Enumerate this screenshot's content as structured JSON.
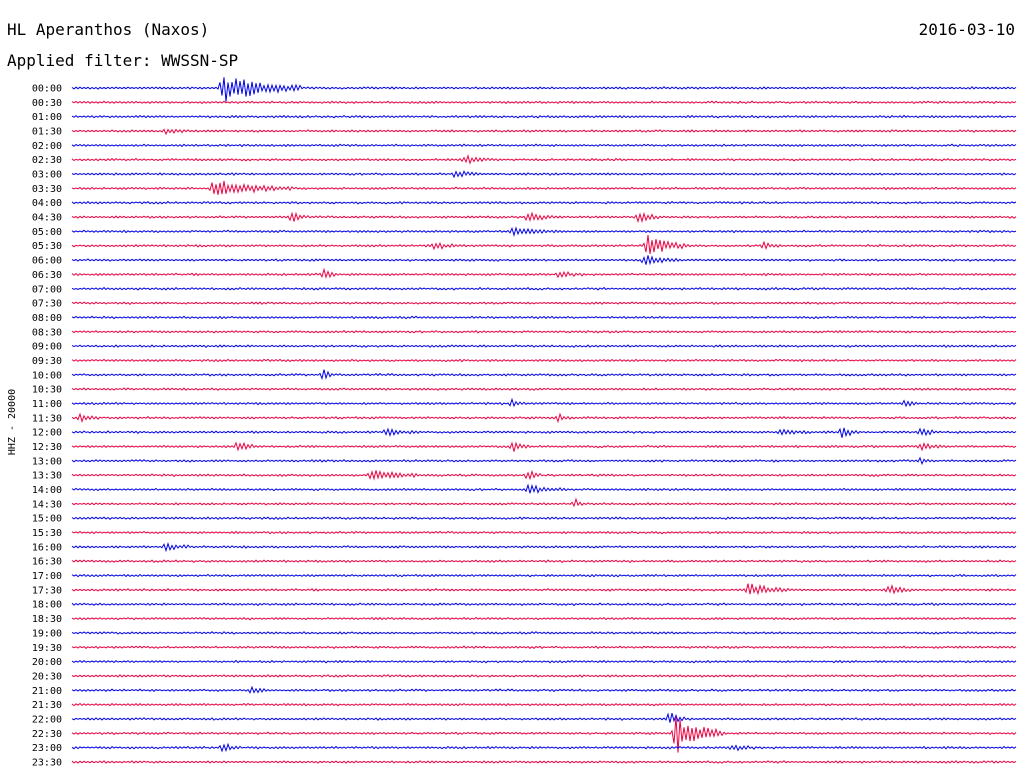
{
  "header": {
    "station": "HL Aperanthos (Naxos)",
    "date": "2016-03-10",
    "filter": "Applied filter: WWSSN-SP"
  },
  "chart_data": {
    "type": "line",
    "ylabel": "HHZ - 20000",
    "row_labels": [
      "00:00",
      "00:30",
      "01:00",
      "01:30",
      "02:00",
      "02:30",
      "03:00",
      "03:30",
      "04:00",
      "04:30",
      "05:00",
      "05:30",
      "06:00",
      "06:30",
      "07:00",
      "07:30",
      "08:00",
      "08:30",
      "09:00",
      "09:30",
      "10:00",
      "10:30",
      "11:00",
      "11:30",
      "12:00",
      "12:30",
      "13:00",
      "13:30",
      "14:00",
      "14:30",
      "15:00",
      "15:30",
      "16:00",
      "16:30",
      "17:00",
      "17:30",
      "18:00",
      "18:30",
      "19:00",
      "19:30",
      "20:00",
      "20:30",
      "21:00",
      "21:30",
      "22:00",
      "22:30",
      "23:00",
      "23:30"
    ],
    "colors": [
      "#0000ee",
      "#ee0040"
    ],
    "trace_minutes": 30,
    "events": [
      {
        "row": 0,
        "minute": 4.8,
        "amp": 15,
        "dur": 2.5
      },
      {
        "row": 3,
        "minute": 3.0,
        "amp": 3,
        "dur": 0.8
      },
      {
        "row": 5,
        "minute": 12.5,
        "amp": 4,
        "dur": 0.8
      },
      {
        "row": 6,
        "minute": 12.2,
        "amp": 4,
        "dur": 0.8
      },
      {
        "row": 7,
        "minute": 4.5,
        "amp": 9,
        "dur": 2.5
      },
      {
        "row": 9,
        "minute": 7.0,
        "amp": 5,
        "dur": 0.5
      },
      {
        "row": 9,
        "minute": 14.5,
        "amp": 4,
        "dur": 1.0
      },
      {
        "row": 9,
        "minute": 18.0,
        "amp": 5,
        "dur": 0.8
      },
      {
        "row": 10,
        "minute": 14.0,
        "amp": 4,
        "dur": 1.5
      },
      {
        "row": 11,
        "minute": 11.5,
        "amp": 3,
        "dur": 1.0
      },
      {
        "row": 11,
        "minute": 18.3,
        "amp": 11,
        "dur": 1.3
      },
      {
        "row": 11,
        "minute": 22.0,
        "amp": 3,
        "dur": 0.6
      },
      {
        "row": 12,
        "minute": 18.2,
        "amp": 5,
        "dur": 1.2
      },
      {
        "row": 13,
        "minute": 8.0,
        "amp": 5,
        "dur": 0.4
      },
      {
        "row": 13,
        "minute": 15.5,
        "amp": 3,
        "dur": 0.8
      },
      {
        "row": 20,
        "minute": 8.0,
        "amp": 7,
        "dur": 0.3
      },
      {
        "row": 22,
        "minute": 14.0,
        "amp": 4,
        "dur": 0.4
      },
      {
        "row": 22,
        "minute": 26.5,
        "amp": 4,
        "dur": 0.4
      },
      {
        "row": 23,
        "minute": 0.3,
        "amp": 4,
        "dur": 0.6
      },
      {
        "row": 23,
        "minute": 15.5,
        "amp": 4,
        "dur": 0.4
      },
      {
        "row": 24,
        "minute": 10.0,
        "amp": 3,
        "dur": 1.0
      },
      {
        "row": 24,
        "minute": 22.5,
        "amp": 3,
        "dur": 1.0
      },
      {
        "row": 24,
        "minute": 24.5,
        "amp": 6,
        "dur": 0.5
      },
      {
        "row": 24,
        "minute": 27.0,
        "amp": 4,
        "dur": 0.5
      },
      {
        "row": 25,
        "minute": 5.3,
        "amp": 7,
        "dur": 0.5
      },
      {
        "row": 25,
        "minute": 14.0,
        "amp": 5,
        "dur": 0.6
      },
      {
        "row": 25,
        "minute": 27.0,
        "amp": 3,
        "dur": 0.8
      },
      {
        "row": 26,
        "minute": 27.0,
        "amp": 3,
        "dur": 0.4
      },
      {
        "row": 27,
        "minute": 9.5,
        "amp": 6,
        "dur": 1.5
      },
      {
        "row": 27,
        "minute": 14.5,
        "amp": 5,
        "dur": 0.4
      },
      {
        "row": 28,
        "minute": 14.5,
        "amp": 4,
        "dur": 1.2
      },
      {
        "row": 29,
        "minute": 16.0,
        "amp": 4,
        "dur": 0.3
      },
      {
        "row": 32,
        "minute": 3.0,
        "amp": 4,
        "dur": 0.8
      },
      {
        "row": 35,
        "minute": 21.5,
        "amp": 7,
        "dur": 1.3
      },
      {
        "row": 35,
        "minute": 26.0,
        "amp": 4,
        "dur": 0.8
      },
      {
        "row": 42,
        "minute": 5.7,
        "amp": 3,
        "dur": 0.6
      },
      {
        "row": 44,
        "minute": 19.0,
        "amp": 7,
        "dur": 0.5
      },
      {
        "row": 45,
        "minute": 19.2,
        "amp": 20,
        "dur": 1.5
      },
      {
        "row": 46,
        "minute": 4.8,
        "amp": 4,
        "dur": 0.6
      },
      {
        "row": 46,
        "minute": 21.0,
        "amp": 3,
        "dur": 0.8
      }
    ]
  }
}
